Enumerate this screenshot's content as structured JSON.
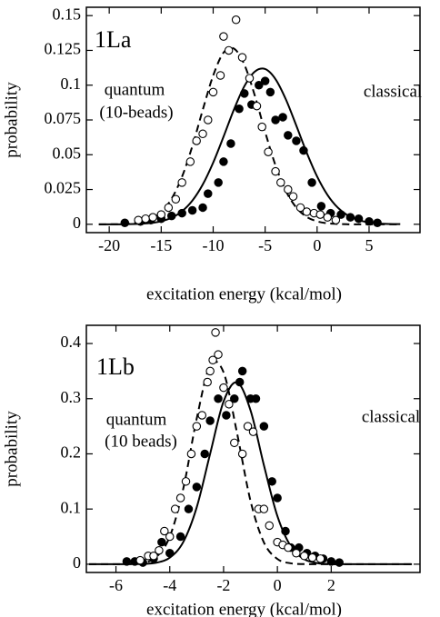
{
  "chart_data": [
    {
      "type": "scatter",
      "x_label": "excitation energy (kcal/mol)",
      "y_label": "probability",
      "annotations": [
        "1La",
        "quantum",
        "(10-beads)",
        "classical"
      ],
      "xlim": [
        -22.2,
        9.9
      ],
      "ylim": [
        -0.006,
        0.156
      ],
      "xticks": [
        -20,
        -15,
        -10,
        -5,
        0,
        5
      ],
      "yticks": [
        0,
        0.025,
        0.05,
        0.075,
        0.1,
        0.125,
        0.15
      ],
      "series": [
        {
          "marker": "filled",
          "color": "#000000",
          "x": [
            -18.5,
            -17,
            -16,
            -15,
            -14,
            -13,
            -12,
            -11,
            -10.5,
            -9.5,
            -9,
            -8.3,
            -7.5,
            -7,
            -6.3,
            -5.6,
            -5,
            -4.5,
            -4,
            -3.3,
            -2.8,
            -2,
            -1.3,
            -0.5,
            0.4,
            1.3,
            2.3,
            3.2,
            4,
            5,
            5.8
          ],
          "values": [
            0.001,
            0.002,
            0.003,
            0.004,
            0.006,
            0.008,
            0.01,
            0.012,
            0.022,
            0.03,
            0.045,
            0.058,
            0.083,
            0.094,
            0.086,
            0.1,
            0.103,
            0.095,
            0.075,
            0.077,
            0.064,
            0.06,
            0.053,
            0.03,
            0.013,
            0.008,
            0.007,
            0.005,
            0.004,
            0.002,
            0.001
          ]
        },
        {
          "marker": "open",
          "color": "#000000",
          "x": [
            -17.2,
            -16.5,
            -15.8,
            -15,
            -14.3,
            -13.6,
            -13,
            -12.2,
            -11.6,
            -11,
            -10.5,
            -10,
            -9.3,
            -9,
            -8.5,
            -7.8,
            -7.2,
            -6.5,
            -5.8,
            -5.3,
            -4.7,
            -4,
            -3.5,
            -2.8,
            -2.3,
            -1.6,
            -1,
            -0.3,
            0.3,
            1,
            1.8
          ],
          "values": [
            0.003,
            0.004,
            0.005,
            0.007,
            0.012,
            0.018,
            0.03,
            0.045,
            0.06,
            0.065,
            0.075,
            0.095,
            0.107,
            0.135,
            0.125,
            0.147,
            0.12,
            0.105,
            0.085,
            0.07,
            0.052,
            0.038,
            0.03,
            0.025,
            0.02,
            0.012,
            0.009,
            0.008,
            0.007,
            0.005,
            0.003
          ]
        },
        {
          "line": "solid",
          "color": "#000000",
          "x": [
            -21,
            -20,
            -19,
            -18,
            -17,
            -16,
            -15,
            -14,
            -13,
            -12,
            -11,
            -10,
            -9,
            -8,
            -7,
            -6,
            -5,
            -4,
            -3,
            -2,
            -1,
            0,
            1,
            2,
            3,
            4,
            5,
            6,
            7,
            8
          ],
          "values": [
            0,
            0,
            0,
            0.0001,
            0.0004,
            0.0009,
            0.0022,
            0.0047,
            0.0093,
            0.017,
            0.0286,
            0.0443,
            0.063,
            0.0825,
            0.0992,
            0.1097,
            0.1116,
            0.1043,
            0.0897,
            0.0709,
            0.0515,
            0.0344,
            0.0211,
            0.0119,
            0.0062,
            0.003,
            0.0013,
            0.0005,
            0.0002,
            0.0001
          ]
        },
        {
          "line": "dashed",
          "color": "#000000",
          "x": [
            -21,
            -20,
            -19,
            -18,
            -17,
            -16,
            -15,
            -14,
            -13,
            -12,
            -11,
            -10,
            -9,
            -8,
            -7,
            -6,
            -5,
            -4,
            -3,
            -2,
            -1,
            0,
            1,
            2,
            3,
            4,
            5,
            6,
            7,
            8
          ],
          "values": [
            0,
            0,
            0.0001,
            0.0005,
            0.0014,
            0.0037,
            0.0088,
            0.0184,
            0.0341,
            0.0562,
            0.0823,
            0.1069,
            0.1234,
            0.1263,
            0.1148,
            0.0927,
            0.0664,
            0.0423,
            0.0239,
            0.012,
            0.0053,
            0.0021,
            0.0007,
            0.0002,
            0,
            0,
            0,
            0,
            0,
            0
          ]
        }
      ]
    },
    {
      "type": "scatter",
      "x_label": "excitation energy (kcal/mol)",
      "y_label": "probability",
      "annotations": [
        "1Lb",
        "quantum",
        "(10 beads)",
        "classical"
      ],
      "xlim": [
        -7.1,
        5.3
      ],
      "ylim": [
        -0.015,
        0.433
      ],
      "xticks": [
        -6,
        -4,
        -2,
        0,
        2
      ],
      "yticks": [
        0,
        0.1,
        0.2,
        0.3,
        0.4
      ],
      "series": [
        {
          "marker": "filled",
          "color": "#000000",
          "x": [
            -5.6,
            -5.3,
            -5,
            -4.6,
            -4.3,
            -4,
            -3.6,
            -3.3,
            -3,
            -2.7,
            -2.5,
            -2.2,
            -1.9,
            -1.6,
            -1.4,
            -1.3,
            -1,
            -0.8,
            -0.5,
            -0.2,
            0,
            0.3,
            0.5,
            0.8,
            1.1,
            1.4,
            1.7,
            2,
            2.3
          ],
          "values": [
            0.005,
            0.005,
            0.003,
            0.01,
            0.04,
            0.02,
            0.05,
            0.1,
            0.14,
            0.2,
            0.26,
            0.3,
            0.27,
            0.3,
            0.33,
            0.35,
            0.3,
            0.3,
            0.25,
            0.15,
            0.12,
            0.06,
            0.03,
            0.03,
            0.02,
            0.015,
            0.01,
            0.005,
            0.003
          ]
        },
        {
          "marker": "open",
          "color": "#000000",
          "x": [
            -5.1,
            -4.8,
            -4.6,
            -4.4,
            -4.2,
            -4,
            -3.8,
            -3.6,
            -3.4,
            -3.2,
            -3,
            -2.8,
            -2.6,
            -2.5,
            -2.4,
            -2.2,
            -2.3,
            -2,
            -1.8,
            -1.6,
            -1.3,
            -1.1,
            -0.9,
            -0.7,
            -0.5,
            -0.3,
            0,
            0.2,
            0.4,
            0.7,
            1,
            1.3,
            1.6
          ],
          "values": [
            0.007,
            0.015,
            0.015,
            0.025,
            0.06,
            0.05,
            0.1,
            0.12,
            0.15,
            0.2,
            0.25,
            0.27,
            0.33,
            0.35,
            0.37,
            0.38,
            0.42,
            0.32,
            0.29,
            0.22,
            0.2,
            0.25,
            0.24,
            0.1,
            0.1,
            0.07,
            0.04,
            0.035,
            0.03,
            0.02,
            0.015,
            0.012,
            0.01
          ]
        },
        {
          "line": "solid",
          "color": "#000000",
          "x": [
            -7,
            -6.5,
            -6,
            -5.5,
            -5,
            -4.5,
            -4,
            -3.5,
            -3,
            -2.5,
            -2,
            -1.5,
            -1,
            -0.5,
            0,
            0.5,
            1,
            1.5,
            2,
            2.5,
            3,
            3.5,
            4,
            4.5,
            5
          ],
          "values": [
            0,
            0,
            0,
            0.0001,
            0.0005,
            0.0027,
            0.0119,
            0.0401,
            0.1029,
            0.2001,
            0.295,
            0.3295,
            0.2791,
            0.1791,
            0.0872,
            0.0322,
            0.009,
            0.0019,
            0.0003,
            0,
            0,
            0,
            0,
            0,
            0
          ]
        },
        {
          "line": "dashed",
          "color": "#000000",
          "x": [
            -7,
            -6.5,
            -6,
            -5.5,
            -5,
            -4.5,
            -4,
            -3.5,
            -3,
            -2.5,
            -2,
            -1.5,
            -1,
            -0.5,
            0,
            0.5,
            1,
            1.5,
            2,
            2.5,
            3,
            3.5,
            4,
            4.5,
            5
          ],
          "values": [
            0,
            0,
            0,
            0.0003,
            0.0024,
            0.013,
            0.05,
            0.1366,
            0.2636,
            0.3599,
            0.3477,
            0.2376,
            0.1149,
            0.0393,
            0.0095,
            0.0016,
            0.0002,
            0,
            0,
            0,
            0,
            0,
            0,
            0,
            0
          ]
        }
      ]
    }
  ]
}
